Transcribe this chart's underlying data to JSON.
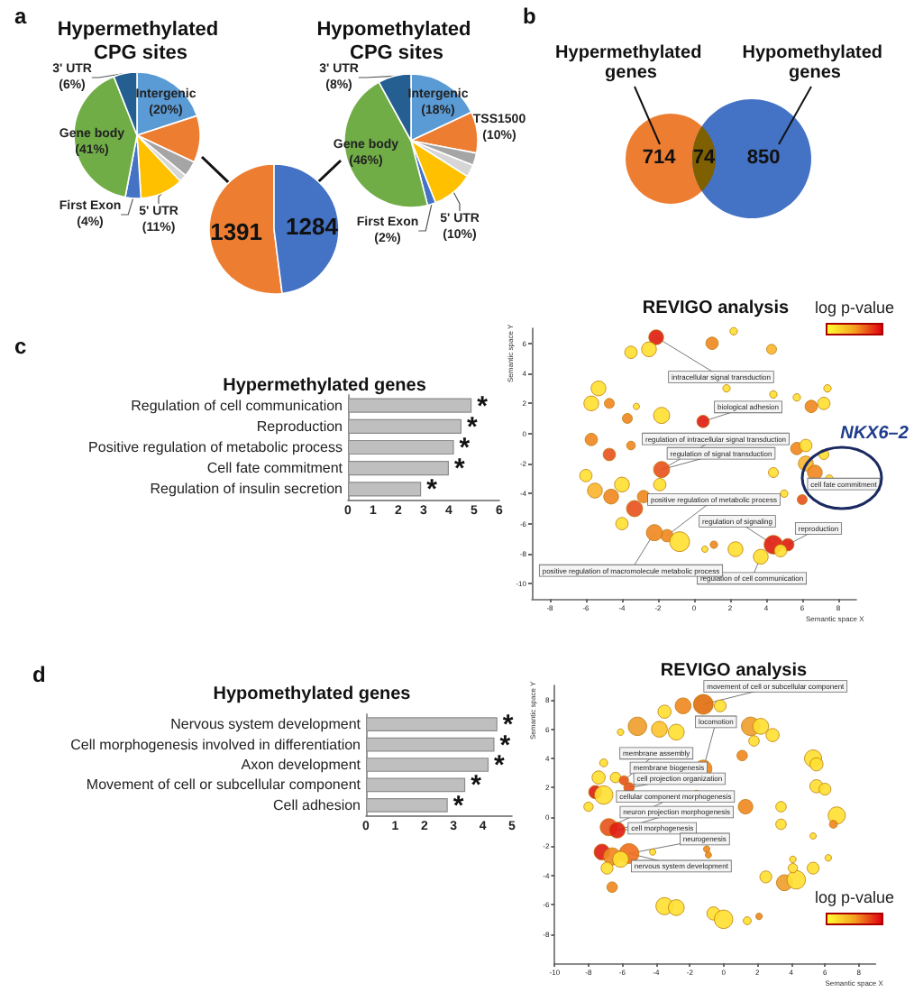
{
  "chart_data": [
    {
      "type": "pie",
      "title": "Hypermethylated CPG sites",
      "annotations": [
        "a"
      ],
      "categories": [
        "Intergenic",
        null,
        null,
        null,
        "5' UTR",
        "First Exon",
        "Gene body",
        "3' UTR"
      ],
      "values": [
        20,
        12,
        4,
        2,
        11,
        4,
        41,
        6
      ],
      "value_labels": [
        "(20%)",
        null,
        null,
        null,
        "(11%)",
        "(4%)",
        "(41%)",
        "(6%)"
      ],
      "colors": [
        "#5b9bd5",
        "#ed7d31",
        "#a5a5a5",
        "#d6d6d6",
        "#ffc000",
        "#4472c4",
        "#70ad47",
        "#255e91"
      ]
    },
    {
      "type": "pie",
      "categories": [
        null,
        null
      ],
      "values": [
        1391,
        1284
      ],
      "colors": [
        "#ed7d31",
        "#4472c4"
      ],
      "data_labels": true
    },
    {
      "type": "pie",
      "title": "Hypomethylated CPG sites",
      "categories": [
        "Intergenic",
        "TSS1500",
        null,
        null,
        "5' UTR",
        "First Exon",
        "Gene body",
        "3' UTR"
      ],
      "values": [
        18,
        10,
        3,
        3,
        10,
        2,
        46,
        8
      ],
      "value_labels": [
        "(18%)",
        "(10%)",
        null,
        null,
        "(10%)",
        "(2%)",
        "(46%)",
        "(8%)"
      ],
      "colors": [
        "#5b9bd5",
        "#ed7d31",
        "#a5a5a5",
        "#d6d6d6",
        "#ffc000",
        "#4472c4",
        "#70ad47",
        "#255e91"
      ]
    },
    {
      "type": "other",
      "data_labels": true,
      "annotations": [
        "b"
      ],
      "categories": [
        "Hypermethylated genes",
        null,
        "Hypomethylated genes"
      ],
      "values": [
        714,
        74,
        850
      ],
      "colors": [
        "#ed7d31",
        "#7f6000",
        "#4472c4"
      ]
    },
    {
      "type": "bar",
      "orientation": "horizontal",
      "title": "Hypermethylated genes",
      "color": "#bfbfbf",
      "categories": [
        "Regulation of cell communication",
        "Reproduction",
        "Positive regulation of metabolic process",
        "Cell fate commitment",
        "Regulation of insulin secretion"
      ],
      "values": [
        4.9,
        4.5,
        4.2,
        4.0,
        2.9
      ],
      "xlim": [
        0,
        6
      ],
      "xticks": [
        0,
        1,
        2,
        3,
        4,
        5,
        6
      ],
      "annotations": [
        "c",
        {
          "text": "*",
          "x": 4.9,
          "y": "Regulation of cell communication"
        },
        {
          "text": "*",
          "x": 4.5,
          "y": "Reproduction"
        },
        {
          "text": "*",
          "x": 4.2,
          "y": "Positive regulation of metabolic process"
        },
        {
          "text": "*",
          "x": 4.0,
          "y": "Cell fate commitment"
        },
        {
          "text": "*",
          "x": 2.9,
          "y": "Regulation of insulin secretion"
        }
      ]
    },
    {
      "type": "bubble",
      "title": "REVIGO analysis",
      "xlabel": "Semantic space X",
      "ylabel": "Semantic space Y",
      "clabel": "log p-value",
      "xlim": [
        -9,
        9
      ],
      "xticks": [
        -8,
        -6,
        -4,
        -2,
        0,
        2,
        4,
        6,
        8
      ],
      "ylim": [
        -11,
        7
      ],
      "yticks": [
        -10,
        -8,
        -6,
        -4,
        -2,
        0,
        2,
        4,
        6
      ],
      "x": [
        -2.1,
        -2.5,
        -3.5,
        1.0,
        2.2,
        4.3,
        -5.3,
        -5.7,
        -4.7,
        -3.2,
        1.8,
        4.4,
        5.7,
        6.5,
        7.2,
        7.4,
        0.5,
        -1.8,
        -3.7,
        -5.7,
        -3.5,
        -4.7,
        -1.8,
        -1.9,
        -6.0,
        -5.5,
        -4.0,
        -4.6,
        -3.3,
        -2.8,
        -4.0,
        -1.5,
        -2.2,
        -0.8,
        0.6,
        1.1,
        2.3,
        3.7,
        4.4,
        5.2,
        4.8,
        5.7,
        6.2,
        6.7,
        6.2,
        7.2,
        7.5,
        6.0,
        5.0,
        4.4
      ],
      "values": [
        6.4,
        5.6,
        5.4,
        6.0,
        6.8,
        5.6,
        3.0,
        2.0,
        2.0,
        1.8,
        3.0,
        2.6,
        2.4,
        1.8,
        2.0,
        3.0,
        0.8,
        1.2,
        1.0,
        -0.4,
        -0.8,
        -1.4,
        -2.4,
        -3.4,
        -2.8,
        -3.8,
        -3.4,
        -4.2,
        -5.0,
        -4.2,
        -6.0,
        -6.8,
        -6.6,
        -7.2,
        -7.7,
        -7.4,
        -7.7,
        -8.2,
        -7.4,
        -7.4,
        -7.8,
        -1.0,
        -2.0,
        -2.6,
        -0.8,
        -1.4,
        -3.0,
        -4.4,
        -4.0,
        -2.6
      ],
      "sizes": [
        0.56,
        0.56,
        0.39,
        0.39,
        0.14,
        0.25,
        0.56,
        0.56,
        0.25,
        0.1,
        0.14,
        0.14,
        0.14,
        0.39,
        0.39,
        0.14,
        0.39,
        0.66,
        0.25,
        0.39,
        0.19,
        0.39,
        0.66,
        0.39,
        0.39,
        0.56,
        0.56,
        0.56,
        0.66,
        0.39,
        0.39,
        0.39,
        0.66,
        1,
        0.1,
        0.14,
        0.56,
        0.56,
        0.88,
        0.39,
        0.39,
        0.39,
        0.56,
        0.56,
        0.39,
        0.25,
        0.14,
        0.25,
        0.14,
        0.25
      ],
      "colors": [
        "#e02012",
        "#ffe033",
        "#ffe033",
        "#f08a24",
        "#ffe033",
        "#fbb631",
        "#ffe033",
        "#ffe033",
        "#f08a24",
        "#ffe033",
        "#ffe033",
        "#ffe033",
        "#ffe033",
        "#f08a24",
        "#ffe033",
        "#ffe033",
        "#e02012",
        "#ffe033",
        "#f08a24",
        "#f08a24",
        "#f08a24",
        "#e8551f",
        "#e8551f",
        "#ffe033",
        "#ffe033",
        "#fbb631",
        "#ffe033",
        "#f08a24",
        "#e8551f",
        "#f08a24",
        "#ffe033",
        "#f08a24",
        "#f08a24",
        "#ffe033",
        "#ffe033",
        "#f08a24",
        "#ffe033",
        "#ffe033",
        "#e02012",
        "#e02012",
        "#ffe033",
        "#f08a24",
        "#fbb631",
        "#f08a24",
        "#ffe033",
        "#ffe033",
        "#ffe033",
        "#e8551f",
        "#ffe033",
        "#ffe033"
      ],
      "annotations": [
        {
          "text": "intracellular signal transduction",
          "x": -2.1,
          "y": 6.4
        },
        {
          "text": "biological adhesion",
          "x": 0.5,
          "y": 0.8
        },
        {
          "text": "regulation of intracellular signal transduction",
          "x": -1.8,
          "y": -2.4
        },
        {
          "text": "regulation of signal transduction",
          "x": -1.8,
          "y": -2.4
        },
        {
          "text": "positive regulation of metabolic process",
          "x": -1.5,
          "y": -6.8
        },
        {
          "text": "regulation of signaling",
          "x": 4.4,
          "y": -7.4
        },
        {
          "text": "reproduction",
          "x": 5.2,
          "y": -7.4
        },
        {
          "text": "cell fate commitment",
          "x": 7.5,
          "y": -3.0
        },
        {
          "text": "regulation of cell communication",
          "x": 3.7,
          "y": -8.2
        },
        {
          "text": "positive regulation of macromolecule metabolic process",
          "x": -2.2,
          "y": -6.6
        },
        {
          "text": "NKX6–2",
          "x": 7.5,
          "y": -3.0
        }
      ]
    },
    {
      "type": "bar",
      "orientation": "horizontal",
      "title": "Hypomethylated genes",
      "color": "#bfbfbf",
      "categories": [
        "Nervous system development",
        "Cell morphogenesis involved in differentiation",
        "Axon development",
        "Movement of cell or subcellular component",
        "Cell adhesion"
      ],
      "values": [
        4.5,
        4.4,
        4.2,
        3.4,
        2.8
      ],
      "xlim": [
        0,
        5
      ],
      "xticks": [
        0,
        1,
        2,
        3,
        4,
        5
      ],
      "annotations": [
        "d",
        {
          "text": "*",
          "x": 4.5,
          "y": "Nervous system development"
        },
        {
          "text": "*",
          "x": 4.4,
          "y": "Cell morphogenesis involved in differentiation"
        },
        {
          "text": "*",
          "x": 4.2,
          "y": "Axon development"
        },
        {
          "text": "*",
          "x": 3.4,
          "y": "Movement of cell or subcellular component"
        },
        {
          "text": "*",
          "x": 2.8,
          "y": "Cell adhesion"
        }
      ]
    },
    {
      "type": "bubble",
      "title": "REVIGO analysis",
      "xlabel": "Semantic space X",
      "ylabel": "Semantic space Y",
      "clabel": "log p-value",
      "xlim": [
        -10,
        9
      ],
      "xticks": [
        -10,
        -8,
        -6,
        -4,
        -2,
        0,
        2,
        4,
        6,
        8
      ],
      "ylim": [
        -10,
        9
      ],
      "yticks": [
        -8,
        -6,
        -4,
        -2,
        0,
        2,
        4,
        6,
        8
      ],
      "x": [
        -1.2,
        -2.4,
        -3.5,
        -0.2,
        -5.1,
        -6.1,
        -3.8,
        -2.8,
        1.6,
        2.2,
        2.9,
        1.8,
        -1.2,
        1.1,
        5.3,
        5.5,
        -7.1,
        -6.4,
        -5.9,
        -5.6,
        -7.4,
        -7.6,
        -7.1,
        -8.0,
        -1.6,
        1.3,
        3.4,
        5.5,
        6.0,
        6.7,
        6.5,
        3.4,
        5.3,
        -6.8,
        -6.3,
        -7.2,
        -6.6,
        -5.6,
        -6.1,
        -6.9,
        -4.2,
        -1.0,
        -0.9,
        -6.6,
        -3.5,
        -2.8,
        -0.6,
        0.0,
        1.4,
        2.1,
        2.5,
        3.6,
        4.3,
        4.1,
        5.3,
        4.1,
        6.2
      ],
      "values": [
        7.7,
        7.6,
        7.2,
        7.6,
        6.2,
        5.8,
        6.0,
        5.8,
        6.2,
        6.2,
        5.6,
        5.2,
        3.3,
        4.2,
        4.0,
        3.6,
        3.7,
        2.7,
        2.5,
        2.0,
        2.7,
        1.7,
        1.5,
        0.7,
        1.6,
        0.7,
        0.7,
        2.1,
        1.9,
        0.1,
        -0.5,
        -0.5,
        -1.3,
        -0.7,
        -0.9,
        -2.4,
        -2.7,
        -2.5,
        -2.9,
        -3.5,
        -2.4,
        -2.2,
        -2.6,
        -4.8,
        -6.1,
        -6.2,
        -6.6,
        -7.0,
        -7.1,
        -6.8,
        -4.1,
        -4.5,
        -4.3,
        -3.5,
        -3.5,
        -2.9,
        -2.8
      ],
      "sizes": [
        1,
        0.64,
        0.44,
        0.36,
        0.87,
        0.11,
        0.64,
        0.64,
        0.87,
        0.64,
        0.44,
        0.28,
        0.75,
        0.28,
        0.75,
        0.44,
        0.16,
        0.28,
        0.22,
        0.28,
        0.44,
        0.44,
        0.87,
        0.22,
        0.11,
        0.54,
        0.28,
        0.44,
        0.36,
        0.75,
        0.16,
        0.28,
        0.1,
        0.75,
        0.64,
        0.64,
        0.75,
        1,
        0.64,
        0.36,
        0.1,
        0.11,
        0.1,
        0.28,
        0.75,
        0.64,
        0.44,
        0.87,
        0.16,
        0.11,
        0.36,
        0.64,
        0.87,
        0.22,
        0.36,
        0.11,
        0.11
      ],
      "colors": [
        "#e07010",
        "#f08a24",
        "#ffe033",
        "#ffe033",
        "#f0a030",
        "#ffe033",
        "#fbc531",
        "#ffe033",
        "#f0a030",
        "#ffe033",
        "#ffe033",
        "#ffe033",
        "#f08a24",
        "#f08a24",
        "#ffe033",
        "#ffe033",
        "#ffe033",
        "#ffe033",
        "#e8551f",
        "#e8551f",
        "#ffe033",
        "#e02012",
        "#ffe033",
        "#ffe033",
        "#ffe033",
        "#f08a24",
        "#ffe033",
        "#ffe033",
        "#ffe033",
        "#ffe033",
        "#f08a24",
        "#ffe033",
        "#ffe033",
        "#e8551f",
        "#e02012",
        "#e02012",
        "#f08a24",
        "#f07020",
        "#ffe033",
        "#ffe033",
        "#ffe033",
        "#f08a24",
        "#f08a24",
        "#f08a24",
        "#ffe033",
        "#ffe033",
        "#ffe033",
        "#ffe033",
        "#ffe033",
        "#f08a24",
        "#ffe033",
        "#f0a030",
        "#ffe033",
        "#ffe033",
        "#ffe033",
        "#ffe033",
        "#ffe033"
      ],
      "annotations": [
        {
          "text": "movement of cell or subcellular component",
          "x": -1.2,
          "y": 7.7
        },
        {
          "text": "locomotion",
          "x": -1.2,
          "y": 3.3
        },
        {
          "text": "membrane assembly",
          "x": -5.9,
          "y": 2.5
        },
        {
          "text": "membrane biogenesis",
          "x": -5.6,
          "y": 2.0
        },
        {
          "text": "cell projection organization",
          "x": -5.6,
          "y": 2.0
        },
        {
          "text": "cellular component morphogenesis",
          "x": -6.8,
          "y": -0.7
        },
        {
          "text": "neuron projection morphogenesis",
          "x": -6.3,
          "y": -0.9
        },
        {
          "text": "cell morphogenesis",
          "x": -6.3,
          "y": -0.9
        },
        {
          "text": "neurogenesis",
          "x": -5.6,
          "y": -2.5
        },
        {
          "text": "nervous system development",
          "x": -5.6,
          "y": -2.5
        }
      ]
    }
  ]
}
